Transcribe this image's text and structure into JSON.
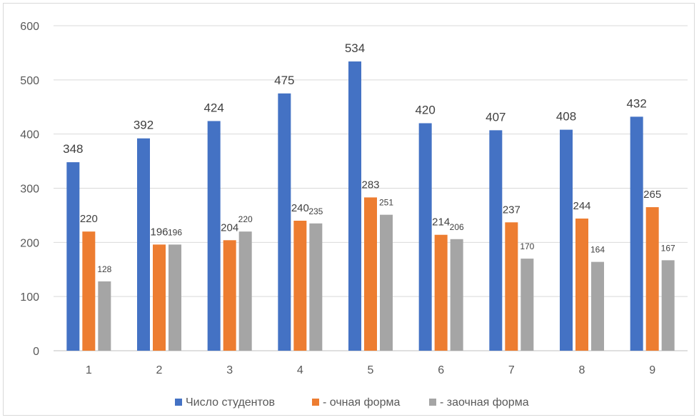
{
  "chart_data": {
    "type": "bar",
    "title": "",
    "xlabel": "",
    "ylabel": "",
    "ylim": [
      0,
      600
    ],
    "yticks": [
      0,
      100,
      200,
      300,
      400,
      500,
      600
    ],
    "categories": [
      "1",
      "2",
      "3",
      "4",
      "5",
      "6",
      "7",
      "8",
      "9"
    ],
    "series": [
      {
        "name": "Число студентов",
        "color": "#4472c4",
        "values": [
          348,
          392,
          424,
          475,
          534,
          420,
          407,
          408,
          432
        ]
      },
      {
        "name": "- очная форма",
        "color": "#ed7d31",
        "values": [
          220,
          196,
          204,
          240,
          283,
          214,
          237,
          244,
          265
        ]
      },
      {
        "name": "- заочная форма",
        "color": "#a5a5a5",
        "values": [
          128,
          196,
          220,
          235,
          251,
          206,
          170,
          164,
          167
        ]
      }
    ],
    "grid": true,
    "legend_position": "bottom"
  }
}
